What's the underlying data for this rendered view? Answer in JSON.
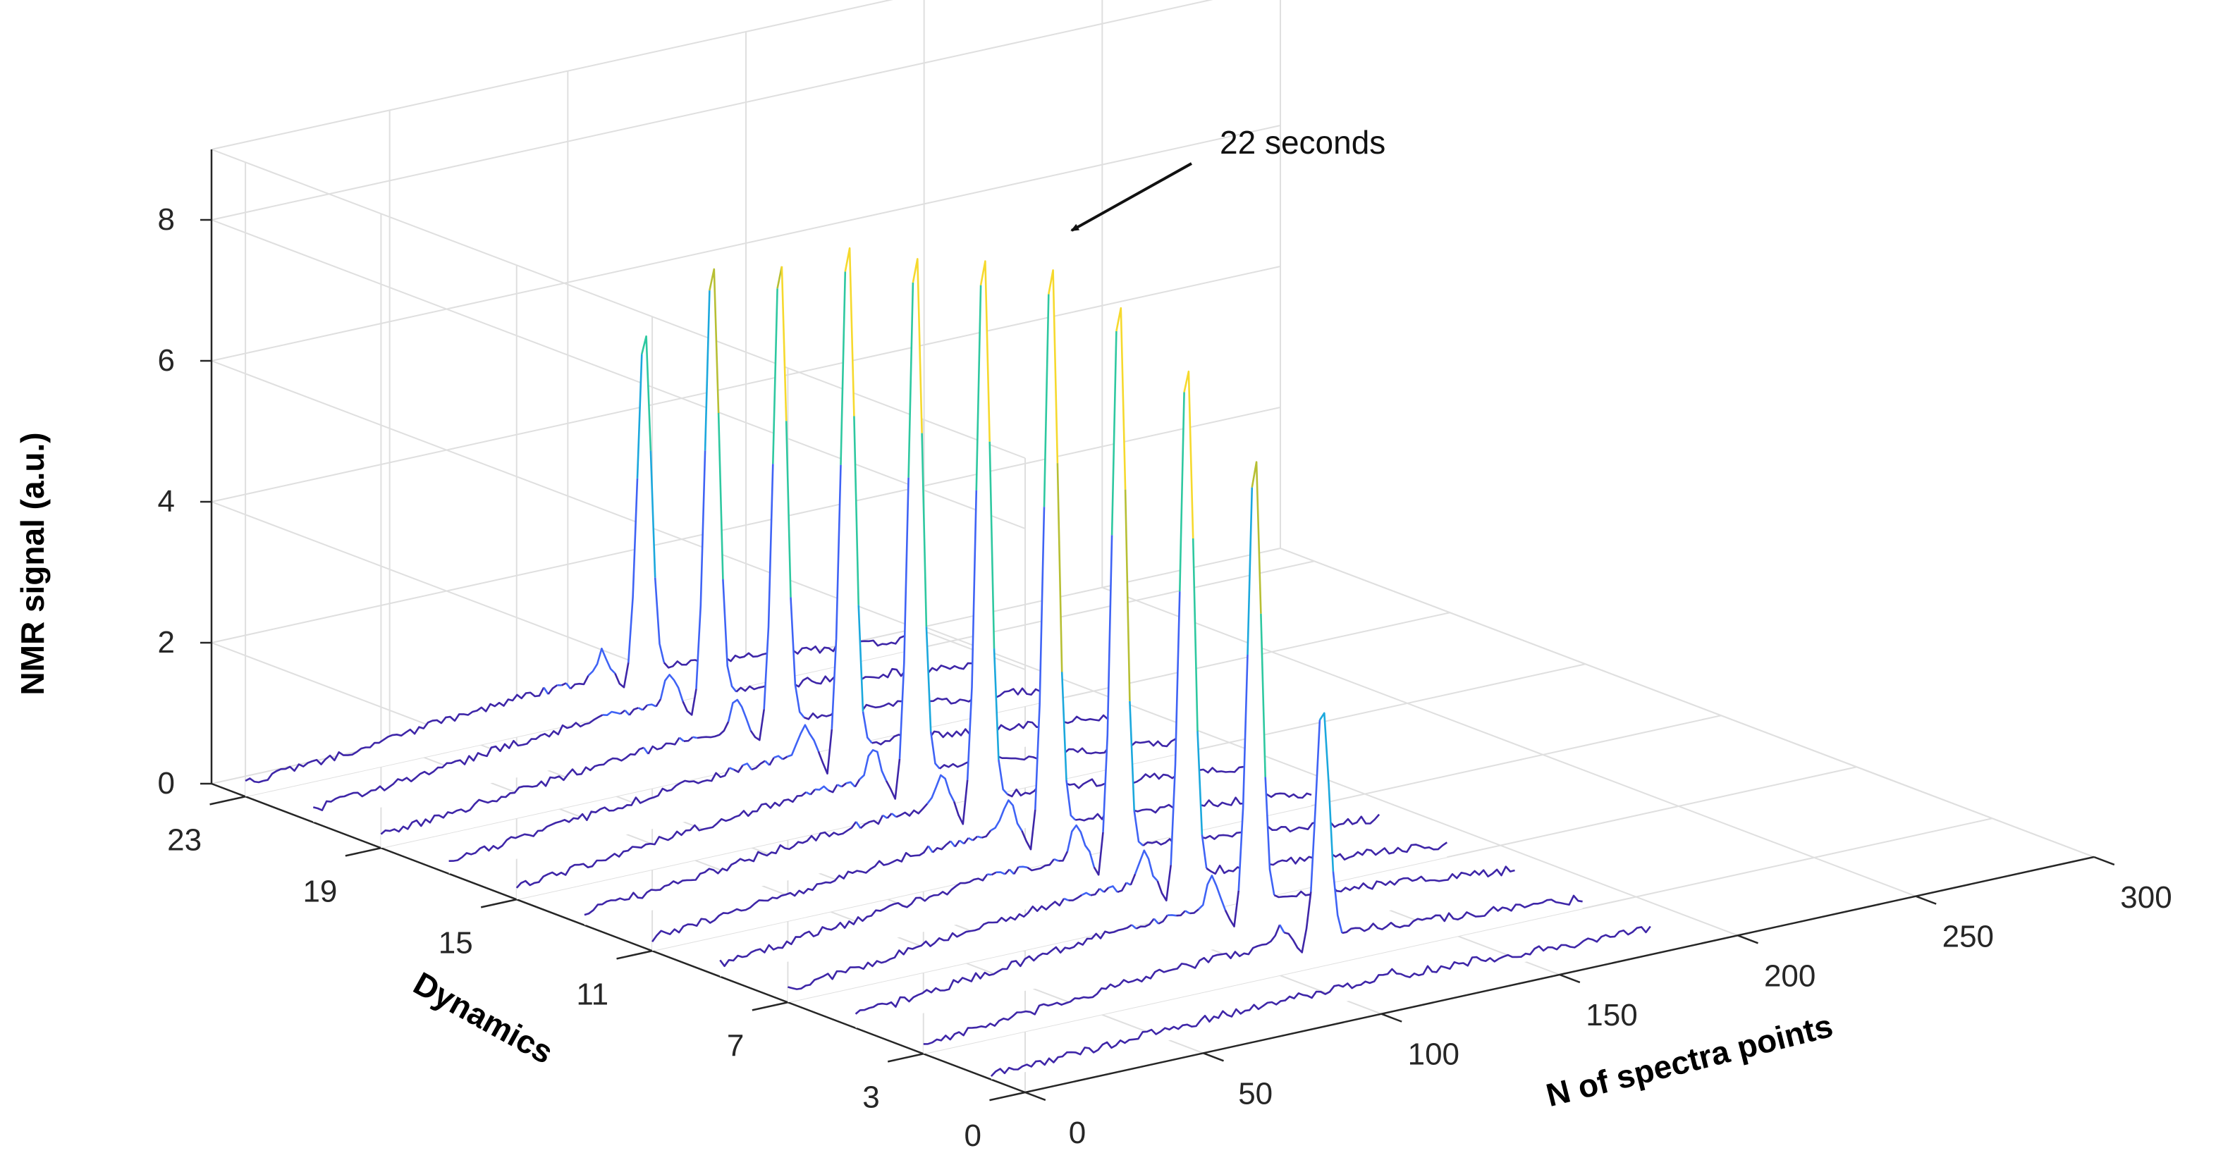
{
  "chart_data": {
    "type": "line",
    "projection": "3d-waterfall",
    "title": "",
    "xlabel": "N of spectra points",
    "ylabel": "Dynamics",
    "zlabel": "NMR signal (a.u.)",
    "xlim": [
      0,
      300
    ],
    "ylim": [
      0,
      24
    ],
    "zlim": [
      0,
      9
    ],
    "x_ticks": [
      "0",
      "50",
      "100",
      "150",
      "200",
      "250",
      "300"
    ],
    "y_ticks": [
      "0",
      "3",
      "7",
      "11",
      "15",
      "19",
      "23"
    ],
    "z_ticks": [
      "0",
      "2",
      "4",
      "6",
      "8"
    ],
    "grid": true,
    "colormap": [
      "#3e26a8",
      "#3f63f5",
      "#1ba8dd",
      "#2ec8a0",
      "#b7bf33",
      "#f6d92d"
    ],
    "series": [
      {
        "name": "Dynamics 1",
        "dynamic": 1,
        "peak_height": 0.1
      },
      {
        "name": "Dynamics 3",
        "dynamic": 3,
        "peak_height": 3.3
      },
      {
        "name": "Dynamics 5",
        "dynamic": 5,
        "peak_height": 6.4
      },
      {
        "name": "Dynamics 7",
        "dynamic": 7,
        "peak_height": 7.4
      },
      {
        "name": "Dynamics 9",
        "dynamic": 9,
        "peak_height": 8.0
      },
      {
        "name": "Dynamics 11",
        "dynamic": 11,
        "peak_height": 8.1
      },
      {
        "name": "Dynamics 13",
        "dynamic": 13,
        "peak_height": 7.9
      },
      {
        "name": "Dynamics 15",
        "dynamic": 15,
        "peak_height": 7.6
      },
      {
        "name": "Dynamics 17",
        "dynamic": 17,
        "peak_height": 7.3
      },
      {
        "name": "Dynamics 19",
        "dynamic": 19,
        "peak_height": 6.7
      },
      {
        "name": "Dynamics 21",
        "dynamic": 21,
        "peak_height": 6.2
      },
      {
        "name": "Dynamics 23",
        "dynamic": 23,
        "peak_height": 4.9
      }
    ],
    "annotation": {
      "text": "22 seconds",
      "target_dynamic": 13
    }
  }
}
